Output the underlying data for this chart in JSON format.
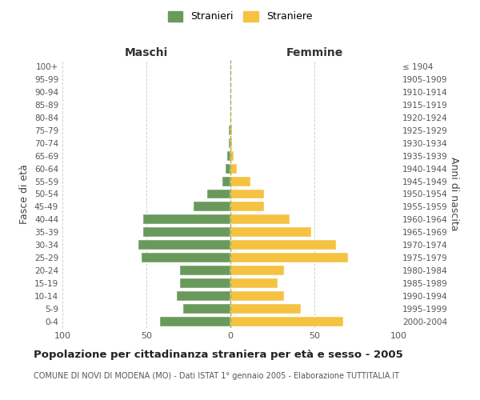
{
  "age_groups": [
    "0-4",
    "5-9",
    "10-14",
    "15-19",
    "20-24",
    "25-29",
    "30-34",
    "35-39",
    "40-44",
    "45-49",
    "50-54",
    "55-59",
    "60-64",
    "65-69",
    "70-74",
    "75-79",
    "80-84",
    "85-89",
    "90-94",
    "95-99",
    "100+"
  ],
  "birth_years": [
    "2000-2004",
    "1995-1999",
    "1990-1994",
    "1985-1989",
    "1980-1984",
    "1975-1979",
    "1970-1974",
    "1965-1969",
    "1960-1964",
    "1955-1959",
    "1950-1954",
    "1945-1949",
    "1940-1944",
    "1935-1939",
    "1930-1934",
    "1925-1929",
    "1920-1924",
    "1915-1919",
    "1910-1914",
    "1905-1909",
    "≤ 1904"
  ],
  "maschi": [
    42,
    28,
    32,
    30,
    30,
    53,
    55,
    52,
    52,
    22,
    14,
    5,
    3,
    2,
    1,
    1,
    0,
    0,
    0,
    0,
    0
  ],
  "femmine": [
    67,
    42,
    32,
    28,
    32,
    70,
    63,
    48,
    35,
    20,
    20,
    12,
    4,
    2,
    1,
    1,
    0,
    0,
    0,
    0,
    0
  ],
  "male_color": "#6a9a5b",
  "female_color": "#f5c242",
  "title": "Popolazione per cittadinanza straniera per età e sesso - 2005",
  "subtitle": "COMUNE DI NOVI DI MODENA (MO) - Dati ISTAT 1° gennaio 2005 - Elaborazione TUTTITALIA.IT",
  "xlabel_left": "Maschi",
  "xlabel_right": "Femmine",
  "ylabel_left": "Fasce di età",
  "ylabel_right": "Anni di nascita",
  "legend_male": "Stranieri",
  "legend_female": "Straniere",
  "xlim": 100,
  "background_color": "#ffffff",
  "grid_color": "#cccccc"
}
